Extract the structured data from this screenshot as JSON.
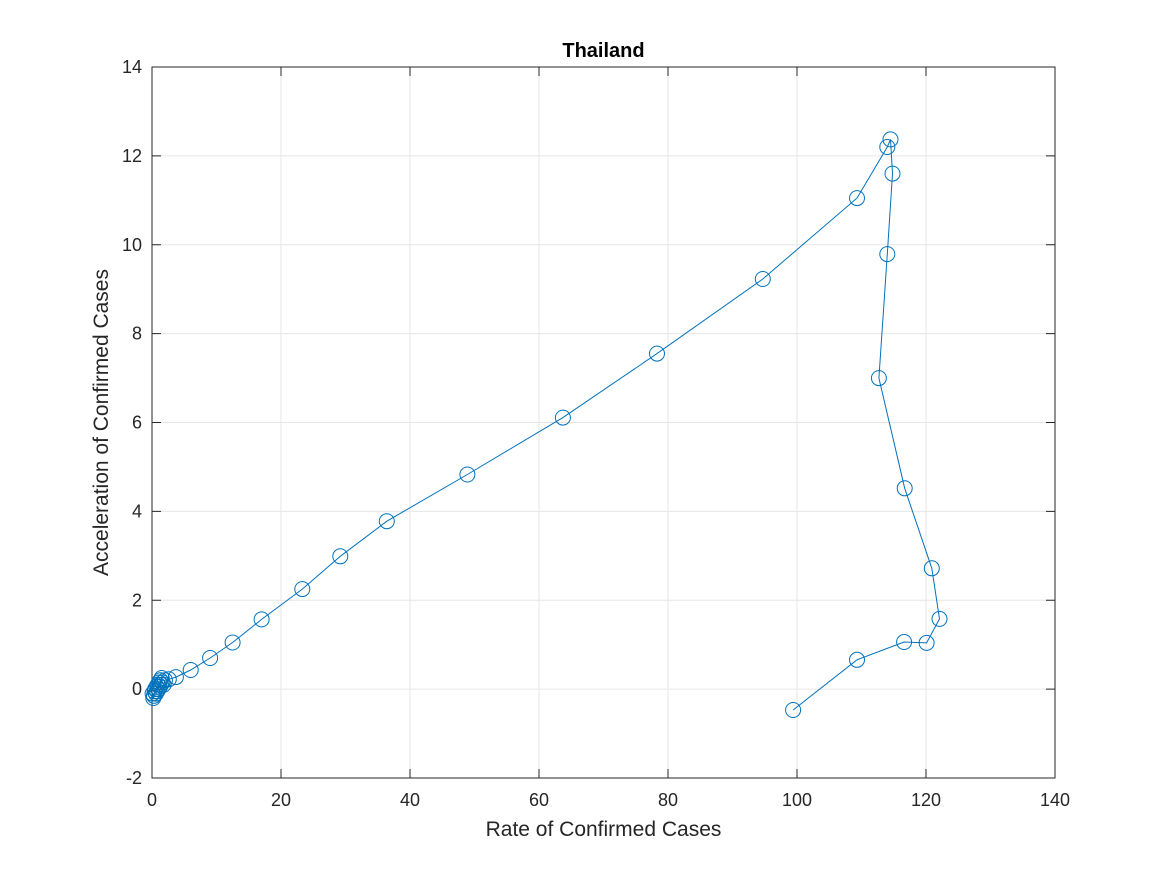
{
  "chart_data": {
    "type": "line",
    "title": "Thailand",
    "xlabel": "Rate of Confirmed Cases",
    "ylabel": "Acceleration of Confirmed Cases",
    "xlim": [
      0,
      140
    ],
    "ylim": [
      -2,
      14
    ],
    "xticks": [
      0,
      20,
      40,
      60,
      80,
      100,
      120,
      140
    ],
    "yticks": [
      -2,
      0,
      2,
      4,
      6,
      8,
      10,
      12,
      14
    ],
    "grid": true,
    "series": [
      {
        "marker": "circle",
        "color": "#0072bd",
        "points": [
          [
            0.1,
            -0.1
          ],
          [
            0.2,
            -0.2
          ],
          [
            0.3,
            -0.15
          ],
          [
            0.4,
            -0.05
          ],
          [
            0.5,
            0.0
          ],
          [
            0.6,
            -0.1
          ],
          [
            0.7,
            0.05
          ],
          [
            0.8,
            -0.05
          ],
          [
            0.9,
            0.1
          ],
          [
            1.0,
            0.0
          ],
          [
            1.1,
            0.15
          ],
          [
            1.2,
            0.05
          ],
          [
            1.3,
            0.2
          ],
          [
            1.4,
            0.1
          ],
          [
            1.5,
            0.25
          ],
          [
            1.6,
            0.15
          ],
          [
            1.8,
            0.1
          ],
          [
            2.0,
            0.2
          ],
          [
            2.6,
            0.22
          ],
          [
            3.7,
            0.27
          ],
          [
            6.0,
            0.43
          ],
          [
            9.0,
            0.7
          ],
          [
            12.5,
            1.05
          ],
          [
            17.0,
            1.57
          ],
          [
            23.3,
            2.25
          ],
          [
            29.2,
            2.99
          ],
          [
            36.4,
            3.78
          ],
          [
            48.9,
            4.83
          ],
          [
            63.7,
            6.11
          ],
          [
            78.3,
            7.55
          ],
          [
            94.7,
            9.23
          ],
          [
            109.3,
            11.05
          ],
          [
            114.0,
            12.2
          ],
          [
            114.5,
            12.37
          ],
          [
            114.8,
            11.6
          ],
          [
            114.0,
            9.79
          ],
          [
            112.7,
            7.0
          ],
          [
            116.7,
            4.52
          ],
          [
            120.9,
            2.72
          ],
          [
            122.1,
            1.58
          ],
          [
            120.1,
            1.04
          ],
          [
            116.6,
            1.06
          ],
          [
            109.3,
            0.66
          ],
          [
            99.4,
            -0.47
          ]
        ]
      }
    ]
  }
}
